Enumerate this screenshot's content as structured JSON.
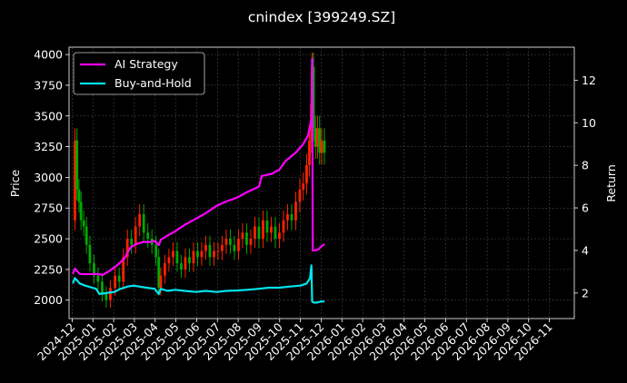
{
  "chart_data": {
    "type": "line",
    "title": "cnindex [399249.SZ]",
    "ylabel_left": "Price",
    "ylabel_right": "Return",
    "ylim_left": [
      1850,
      4060
    ],
    "ylim_right": [
      0.8,
      13.55
    ],
    "y_ticks_left": [
      2000,
      2250,
      2500,
      2750,
      3000,
      3250,
      3500,
      3750,
      4000
    ],
    "y_ticks_right": [
      2,
      4,
      6,
      8,
      10,
      12
    ],
    "x_tick_labels": [
      "2024-12",
      "2025-01",
      "2025-02",
      "2025-03",
      "2025-04",
      "2025-05",
      "2025-06",
      "2025-07",
      "2025-08",
      "2025-09",
      "2025-10",
      "2025-11",
      "2025-12",
      "2026-01",
      "2026-02",
      "2026-03",
      "2026-04",
      "2026-05",
      "2026-06",
      "2026-07",
      "2026-08",
      "2026-09",
      "2026-10",
      "2026-11"
    ],
    "grid": true,
    "legend_position": "top-left",
    "legend": [
      "AI Strategy",
      "Buy-and-Hold"
    ],
    "colors": {
      "ai": "#ff00ff",
      "bh": "#00e5ee",
      "up": "#ff2200",
      "down": "#00aa00",
      "background": "#000000",
      "grid": "#555555"
    },
    "series": [
      {
        "name": "AI Strategy",
        "x": [
          "2024-12-02",
          "2024-12-05",
          "2024-12-12",
          "2024-12-20",
          "2025-01-05",
          "2025-01-15",
          "2025-01-25",
          "2025-02-05",
          "2025-02-15",
          "2025-02-25",
          "2025-03-05",
          "2025-03-15",
          "2025-03-25",
          "2025-04-01",
          "2025-04-07",
          "2025-04-10",
          "2025-04-20",
          "2025-05-01",
          "2025-05-15",
          "2025-06-01",
          "2025-06-15",
          "2025-07-01",
          "2025-07-15",
          "2025-08-01",
          "2025-08-15",
          "2025-09-01",
          "2025-09-05",
          "2025-09-20",
          "2025-10-01",
          "2025-10-10",
          "2025-10-25",
          "2025-11-05",
          "2025-11-12",
          "2025-11-17",
          "2025-11-18",
          "2025-11-19",
          "2025-11-22",
          "2025-11-27",
          "2025-12-02",
          "2025-12-06"
        ],
        "values": [
          2.9,
          3.15,
          2.9,
          2.88,
          2.9,
          2.85,
          3.05,
          3.3,
          3.6,
          4.15,
          4.3,
          4.4,
          4.4,
          4.45,
          4.25,
          4.5,
          4.7,
          4.9,
          5.2,
          5.5,
          5.75,
          6.1,
          6.3,
          6.5,
          6.75,
          7.0,
          7.5,
          7.6,
          7.8,
          8.2,
          8.6,
          9.0,
          9.4,
          10.2,
          13.0,
          4.0,
          4.0,
          4.05,
          4.2,
          4.3
        ]
      },
      {
        "name": "Buy-and-Hold",
        "x": [
          "2024-12-02",
          "2024-12-05",
          "2024-12-12",
          "2024-12-20",
          "2025-01-05",
          "2025-01-10",
          "2025-01-20",
          "2025-02-01",
          "2025-02-10",
          "2025-02-20",
          "2025-03-01",
          "2025-03-10",
          "2025-03-20",
          "2025-04-01",
          "2025-04-07",
          "2025-04-10",
          "2025-04-20",
          "2025-05-01",
          "2025-05-15",
          "2025-06-01",
          "2025-06-15",
          "2025-07-01",
          "2025-07-15",
          "2025-08-01",
          "2025-08-15",
          "2025-09-01",
          "2025-09-15",
          "2025-10-01",
          "2025-10-15",
          "2025-11-01",
          "2025-11-10",
          "2025-11-15",
          "2025-11-17",
          "2025-11-18",
          "2025-11-20",
          "2025-11-25",
          "2025-12-01",
          "2025-12-06"
        ],
        "values": [
          2.45,
          2.7,
          2.45,
          2.35,
          2.2,
          1.95,
          2.0,
          2.05,
          2.2,
          2.3,
          2.35,
          2.3,
          2.25,
          2.2,
          1.95,
          2.2,
          2.1,
          2.15,
          2.1,
          2.05,
          2.1,
          2.05,
          2.1,
          2.12,
          2.15,
          2.2,
          2.25,
          2.25,
          2.3,
          2.35,
          2.45,
          2.7,
          3.3,
          1.6,
          1.55,
          1.55,
          1.6,
          1.6
        ]
      },
      {
        "name": "Price",
        "x": [
          "2024-12-02",
          "2024-12-05",
          "2024-12-08",
          "2024-12-11",
          "2024-12-14",
          "2024-12-18",
          "2024-12-22",
          "2024-12-27",
          "2025-01-02",
          "2025-01-08",
          "2025-01-14",
          "2025-01-20",
          "2025-01-26",
          "2025-02-02",
          "2025-02-08",
          "2025-02-14",
          "2025-02-20",
          "2025-02-26",
          "2025-03-04",
          "2025-03-10",
          "2025-03-16",
          "2025-03-22",
          "2025-03-28",
          "2025-04-03",
          "2025-04-07",
          "2025-04-10",
          "2025-04-16",
          "2025-04-22",
          "2025-04-28",
          "2025-05-04",
          "2025-05-10",
          "2025-05-16",
          "2025-05-22",
          "2025-05-28",
          "2025-06-03",
          "2025-06-09",
          "2025-06-15",
          "2025-06-21",
          "2025-06-27",
          "2025-07-03",
          "2025-07-09",
          "2025-07-15",
          "2025-07-21",
          "2025-07-27",
          "2025-08-02",
          "2025-08-08",
          "2025-08-14",
          "2025-08-20",
          "2025-08-26",
          "2025-09-01",
          "2025-09-07",
          "2025-09-13",
          "2025-09-19",
          "2025-09-25",
          "2025-10-01",
          "2025-10-07",
          "2025-10-13",
          "2025-10-19",
          "2025-10-25",
          "2025-10-31",
          "2025-11-05",
          "2025-11-10",
          "2025-11-14",
          "2025-11-17",
          "2025-11-18",
          "2025-11-20",
          "2025-11-23",
          "2025-11-26",
          "2025-11-29",
          "2025-12-02",
          "2025-12-06"
        ],
        "values": [
          2650,
          3300,
          2900,
          2800,
          2650,
          2600,
          2450,
          2300,
          2200,
          2150,
          2050,
          2000,
          2100,
          2200,
          2150,
          2350,
          2500,
          2450,
          2600,
          2700,
          2550,
          2500,
          2450,
          2350,
          2100,
          2200,
          2300,
          2350,
          2400,
          2300,
          2250,
          2350,
          2300,
          2400,
          2350,
          2400,
          2450,
          2350,
          2400,
          2400,
          2450,
          2500,
          2450,
          2400,
          2500,
          2550,
          2450,
          2500,
          2600,
          2500,
          2650,
          2550,
          2600,
          2500,
          2550,
          2650,
          2700,
          2650,
          2800,
          2900,
          2950,
          3100,
          3300,
          3600,
          3900,
          3400,
          3250,
          3400,
          3200,
          3300,
          3200
        ]
      }
    ]
  }
}
